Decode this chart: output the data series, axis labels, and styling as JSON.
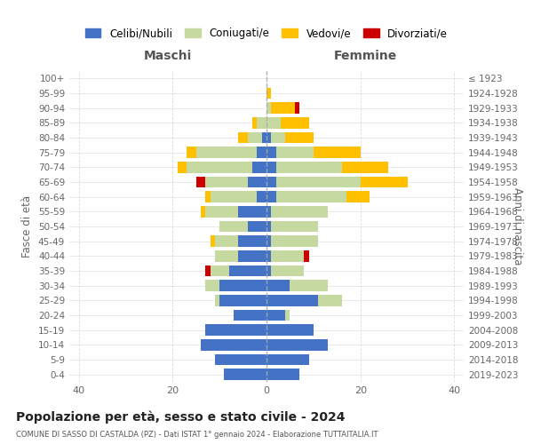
{
  "age_groups": [
    "0-4",
    "5-9",
    "10-14",
    "15-19",
    "20-24",
    "25-29",
    "30-34",
    "35-39",
    "40-44",
    "45-49",
    "50-54",
    "55-59",
    "60-64",
    "65-69",
    "70-74",
    "75-79",
    "80-84",
    "85-89",
    "90-94",
    "95-99",
    "100+"
  ],
  "birth_years": [
    "2019-2023",
    "2014-2018",
    "2009-2013",
    "2004-2008",
    "1999-2003",
    "1994-1998",
    "1989-1993",
    "1984-1988",
    "1979-1983",
    "1974-1978",
    "1969-1973",
    "1964-1968",
    "1959-1963",
    "1954-1958",
    "1949-1953",
    "1944-1948",
    "1939-1943",
    "1934-1938",
    "1929-1933",
    "1924-1928",
    "≤ 1923"
  ],
  "maschi": {
    "celibi": [
      9,
      11,
      14,
      13,
      7,
      10,
      10,
      8,
      6,
      6,
      4,
      6,
      2,
      4,
      3,
      2,
      1,
      0,
      0,
      0,
      0
    ],
    "coniugati": [
      0,
      0,
      0,
      0,
      0,
      1,
      3,
      4,
      5,
      5,
      6,
      7,
      10,
      9,
      14,
      13,
      3,
      2,
      0,
      0,
      0
    ],
    "vedovi": [
      0,
      0,
      0,
      0,
      0,
      0,
      0,
      0,
      0,
      1,
      0,
      1,
      1,
      0,
      2,
      2,
      2,
      1,
      0,
      0,
      0
    ],
    "divorziati": [
      0,
      0,
      0,
      0,
      0,
      0,
      0,
      1,
      0,
      0,
      0,
      0,
      0,
      2,
      0,
      0,
      0,
      0,
      0,
      0,
      0
    ]
  },
  "femmine": {
    "nubili": [
      7,
      9,
      13,
      10,
      4,
      11,
      5,
      1,
      1,
      1,
      1,
      1,
      2,
      2,
      2,
      2,
      1,
      0,
      0,
      0,
      0
    ],
    "coniugate": [
      0,
      0,
      0,
      0,
      1,
      5,
      8,
      7,
      7,
      10,
      10,
      12,
      15,
      18,
      14,
      8,
      3,
      3,
      1,
      0,
      0
    ],
    "vedove": [
      0,
      0,
      0,
      0,
      0,
      0,
      0,
      0,
      0,
      0,
      0,
      0,
      5,
      10,
      10,
      10,
      6,
      6,
      5,
      1,
      0
    ],
    "divorziate": [
      0,
      0,
      0,
      0,
      0,
      0,
      0,
      0,
      1,
      0,
      0,
      0,
      0,
      0,
      0,
      0,
      0,
      0,
      1,
      0,
      0
    ]
  },
  "colors": {
    "celibi": "#4472c4",
    "coniugati": "#c5d9a0",
    "vedovi": "#ffc000",
    "divorziati": "#cc0000"
  },
  "xlim": 42,
  "title": "Popolazione per età, sesso e stato civile - 2024",
  "subtitle": "COMUNE DI SASSO DI CASTALDA (PZ) - Dati ISTAT 1° gennaio 2024 - Elaborazione TUTTAITALIA.IT",
  "ylabel_left": "Fasce di età",
  "ylabel_right": "Anni di nascita",
  "xlabel_left": "Maschi",
  "xlabel_right": "Femmine",
  "legend_labels": [
    "Celibi/Nubili",
    "Coniugati/e",
    "Vedovi/e",
    "Divorziati/e"
  ],
  "background_color": "#ffffff",
  "grid_color": "#cccccc"
}
